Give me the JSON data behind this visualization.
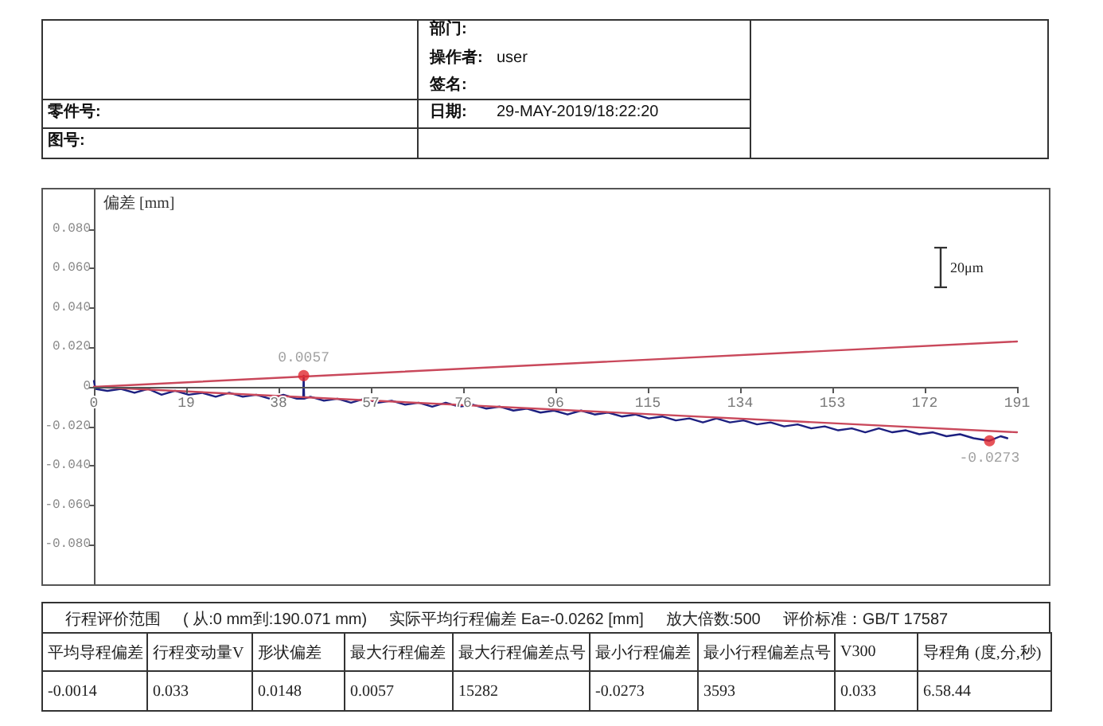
{
  "chart_data": {
    "type": "line",
    "ylabel": "偏差 [mm]",
    "xlim": [
      0,
      191
    ],
    "xticks": [
      0,
      {
        "value": 19.1,
        "label": "19"
      },
      {
        "value": 38.2,
        "label": "38"
      },
      {
        "value": 57.3,
        "label": "57"
      },
      {
        "value": 76.4,
        "label": "76"
      },
      {
        "value": 95.5,
        "label": "96"
      },
      {
        "value": 114.6,
        "label": "115"
      },
      {
        "value": 133.7,
        "label": "134"
      },
      {
        "value": 152.8,
        "label": "153"
      },
      {
        "value": 171.9,
        "label": "172"
      },
      191
    ],
    "ylim": [
      -0.1,
      0.1
    ],
    "yticks": [
      {
        "value": -0.08,
        "label": "-0.080"
      },
      {
        "value": -0.06,
        "label": "-0.060"
      },
      {
        "value": -0.04,
        "label": "-0.040"
      },
      {
        "value": -0.02,
        "label": "-0.020"
      },
      0,
      {
        "value": 0.02,
        "label": "0.020"
      },
      {
        "value": 0.04,
        "label": "0.040"
      },
      {
        "value": 0.06,
        "label": "0.060"
      },
      {
        "value": 0.08,
        "label": "0.080"
      }
    ],
    "grid": false,
    "marker": "none",
    "series": [
      {
        "color": "#1d2080",
        "x": [
          0,
          0.3,
          2.8,
          5.6,
          8.4,
          11.2,
          14,
          16.8,
          19.6,
          22.4,
          25.2,
          28,
          30.8,
          33.6,
          36.4,
          39.2,
          42,
          43.3,
          43.4,
          43.5,
          44.8,
          47.6,
          50.4,
          53.2,
          56,
          58.8,
          61.6,
          64.4,
          67.2,
          70,
          72.8,
          75.6,
          78.4,
          81.2,
          84,
          86.8,
          89.6,
          92.4,
          95.2,
          98,
          100.8,
          103.6,
          106.4,
          109.2,
          112,
          114.8,
          117.6,
          120.4,
          123.2,
          126,
          128.8,
          131.6,
          134.4,
          137.2,
          140,
          142.8,
          145.6,
          148.4,
          151.2,
          154,
          156.8,
          159.6,
          162.4,
          165.2,
          168,
          170.8,
          173.6,
          176.4,
          179.2,
          182,
          185.3,
          187.6,
          189
        ],
        "values": [
          0.003,
          -0.001,
          -0.002,
          -0.001,
          -0.003,
          -0.001,
          -0.004,
          -0.002,
          -0.004,
          -0.003,
          -0.005,
          -0.003,
          -0.005,
          -0.004,
          -0.006,
          -0.004,
          -0.006,
          -0.006,
          0.0057,
          -0.006,
          -0.005,
          -0.007,
          -0.006,
          -0.008,
          -0.006,
          -0.008,
          -0.007,
          -0.009,
          -0.008,
          -0.01,
          -0.008,
          -0.01,
          -0.009,
          -0.011,
          -0.01,
          -0.012,
          -0.011,
          -0.013,
          -0.012,
          -0.014,
          -0.012,
          -0.014,
          -0.013,
          -0.015,
          -0.014,
          -0.016,
          -0.015,
          -0.017,
          -0.016,
          -0.018,
          -0.016,
          -0.018,
          -0.017,
          -0.019,
          -0.018,
          -0.02,
          -0.019,
          -0.021,
          -0.02,
          -0.022,
          -0.021,
          -0.023,
          -0.021,
          -0.023,
          -0.022,
          -0.024,
          -0.023,
          -0.025,
          -0.024,
          -0.026,
          -0.0273,
          -0.025,
          -0.026
        ]
      },
      {
        "color": "#c9485b",
        "x": [
          0,
          191
        ],
        "values": [
          0,
          0.023
        ]
      },
      {
        "color": "#c9485b",
        "x": [
          0,
          191
        ],
        "values": [
          0,
          -0.023
        ]
      },
      {
        "type": "scatter",
        "color": "#e0282f",
        "marker": "circle",
        "x": [
          43.4,
          185.3
        ],
        "values": [
          0.0057,
          -0.0273
        ],
        "value_labels": [
          "0.0057",
          "-0.0273"
        ]
      }
    ],
    "annotations": [
      "部门:",
      "操作者:",
      "user",
      "签名:",
      "零件号:",
      "日期:",
      "29-MAY-2019/18:22:20",
      "图号:",
      "20μm",
      "行程评价范围",
      "( 从:0 mm到:190.071 mm)",
      "实际平均行程偏差 Ea=-0.0262 [mm]",
      "放大倍数:500",
      "评价标准：GB/T 17587",
      "平均导程偏差",
      "行程变动量V",
      "形状偏差",
      "最大行程偏差",
      "最大行程偏差点号",
      "最小行程偏差",
      "最小行程偏差点号",
      "V300",
      "导程角 (度,分,秒)",
      "-0.0014",
      "0.033",
      "0.0148",
      "0.0057",
      "15282",
      "-0.0273",
      "3593",
      "0.033",
      "6.58.44"
    ]
  }
}
